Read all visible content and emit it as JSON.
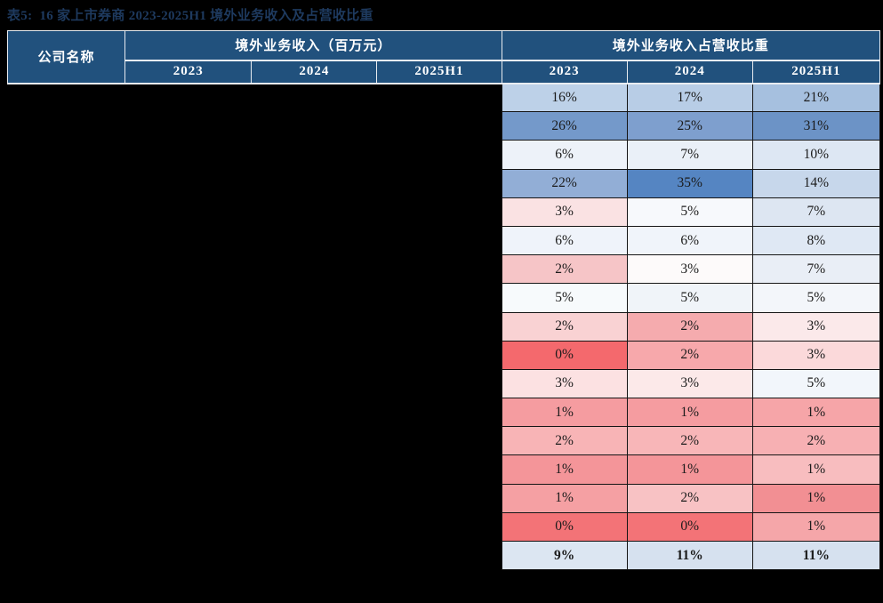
{
  "page": {
    "bg": "#000000"
  },
  "title": {
    "text": "表5:  16 家上市券商 2023-2025H1 境外业务收入及占营收比重",
    "color": "#1E3A5F"
  },
  "table": {
    "header": {
      "company": "公司名称",
      "revenue_group": "境外业务收入（百万元）",
      "share_group": "境外业务收入占营收比重",
      "years": [
        "2023",
        "2024",
        "2025H1"
      ],
      "bg": "#21517D",
      "text_color": "#FFFFFF"
    },
    "rows": [
      {
        "values": [
          "16%",
          "17%",
          "21%"
        ],
        "colors": [
          "#BDD1E8",
          "#B8CDE6",
          "#A6C0DF"
        ],
        "bold": false
      },
      {
        "values": [
          "26%",
          "25%",
          "31%"
        ],
        "colors": [
          "#7499CA",
          "#7E9FCE",
          "#6C93C6"
        ],
        "bold": false
      },
      {
        "values": [
          "6%",
          "7%",
          "10%"
        ],
        "colors": [
          "#EDF2F9",
          "#EAF0F8",
          "#DDE7F3"
        ],
        "bold": false
      },
      {
        "values": [
          "22%",
          "35%",
          "14%"
        ],
        "colors": [
          "#92AED6",
          "#5585C2",
          "#C7D7EB"
        ],
        "bold": false
      },
      {
        "values": [
          "3%",
          "5%",
          "7%"
        ],
        "colors": [
          "#FAE2E3",
          "#F7F9FC",
          "#DDE6F2"
        ],
        "bold": false
      },
      {
        "values": [
          "6%",
          "6%",
          "8%"
        ],
        "colors": [
          "#EFF3FA",
          "#F0F4FA",
          "#DFE8F4"
        ],
        "bold": false
      },
      {
        "values": [
          "2%",
          "3%",
          "7%"
        ],
        "colors": [
          "#F6C5C7",
          "#FDFAFA",
          "#E9EEF6"
        ],
        "bold": false
      },
      {
        "values": [
          "5%",
          "5%",
          "5%"
        ],
        "colors": [
          "#F7FAFC",
          "#F0F4F9",
          "#F3F6FA"
        ],
        "bold": false
      },
      {
        "values": [
          "2%",
          "2%",
          "3%"
        ],
        "colors": [
          "#F9D2D3",
          "#F5ABAE",
          "#FBE9EA"
        ],
        "bold": false
      },
      {
        "values": [
          "0%",
          "2%",
          "3%"
        ],
        "colors": [
          "#F4696D",
          "#F7A8AB",
          "#FBD9DA"
        ],
        "bold": false
      },
      {
        "values": [
          "3%",
          "3%",
          "5%"
        ],
        "colors": [
          "#FCE1E2",
          "#FCE9E9",
          "#F2F6FB"
        ],
        "bold": false
      },
      {
        "values": [
          "1%",
          "1%",
          "1%"
        ],
        "colors": [
          "#F59CA0",
          "#F59CA0",
          "#F6A5A8"
        ],
        "bold": false
      },
      {
        "values": [
          "2%",
          "2%",
          "2%"
        ],
        "colors": [
          "#F8B4B6",
          "#F8B6B8",
          "#F7B0B3"
        ],
        "bold": false
      },
      {
        "values": [
          "1%",
          "1%",
          "1%"
        ],
        "colors": [
          "#F49599",
          "#F49599",
          "#F8BDBF"
        ],
        "bold": false
      },
      {
        "values": [
          "1%",
          "2%",
          "1%"
        ],
        "colors": [
          "#F5A0A3",
          "#F8C2C4",
          "#F28F93"
        ],
        "bold": false
      },
      {
        "values": [
          "0%",
          "0%",
          "1%"
        ],
        "colors": [
          "#F37377",
          "#F37377",
          "#F5A6A9"
        ],
        "bold": false
      },
      {
        "values": [
          "9%",
          "11%",
          "11%"
        ],
        "colors": [
          "#DCE6F2",
          "#D6E1EF",
          "#D6E1EF"
        ],
        "bold": true
      }
    ]
  }
}
